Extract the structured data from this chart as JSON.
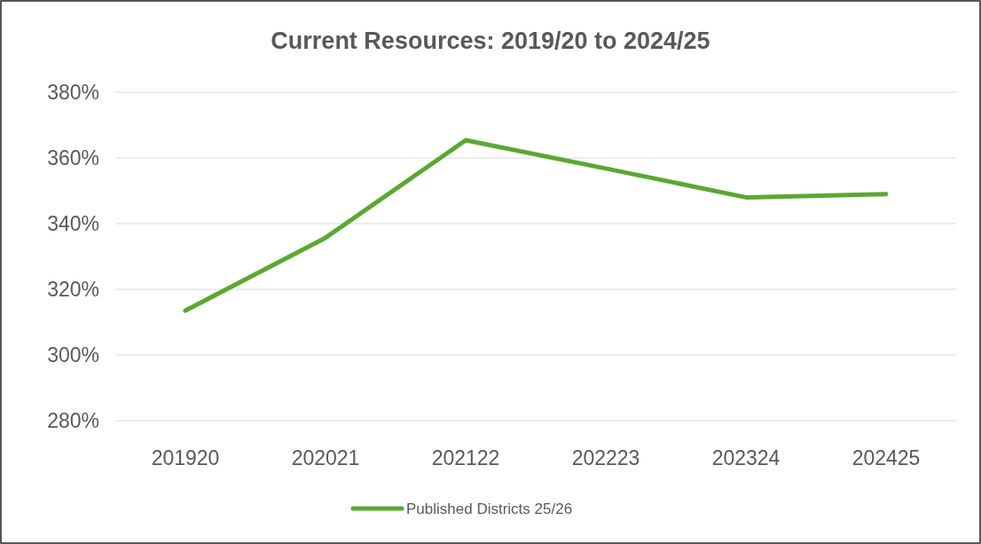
{
  "chart_data": {
    "type": "line",
    "title": "Current Resources: 2019/20 to 2024/25",
    "categories": [
      "201920",
      "202021",
      "202122",
      "202223",
      "202324",
      "202425"
    ],
    "series": [
      {
        "name": "Published Districts 25/26",
        "color": "#5aa832",
        "values": [
          313.5,
          335.7,
          365.4,
          356.8,
          348,
          349
        ]
      }
    ],
    "ylim": [
      280,
      380
    ],
    "yticks": [
      {
        "value": 280,
        "label": "280%"
      },
      {
        "value": 300,
        "label": "300%"
      },
      {
        "value": 320,
        "label": "320%"
      },
      {
        "value": 340,
        "label": "340%"
      },
      {
        "value": 360,
        "label": "360%"
      },
      {
        "value": 380,
        "label": "380%"
      }
    ],
    "grid": "y",
    "legend": "bottom",
    "marker": "none",
    "line_style": "solid"
  }
}
